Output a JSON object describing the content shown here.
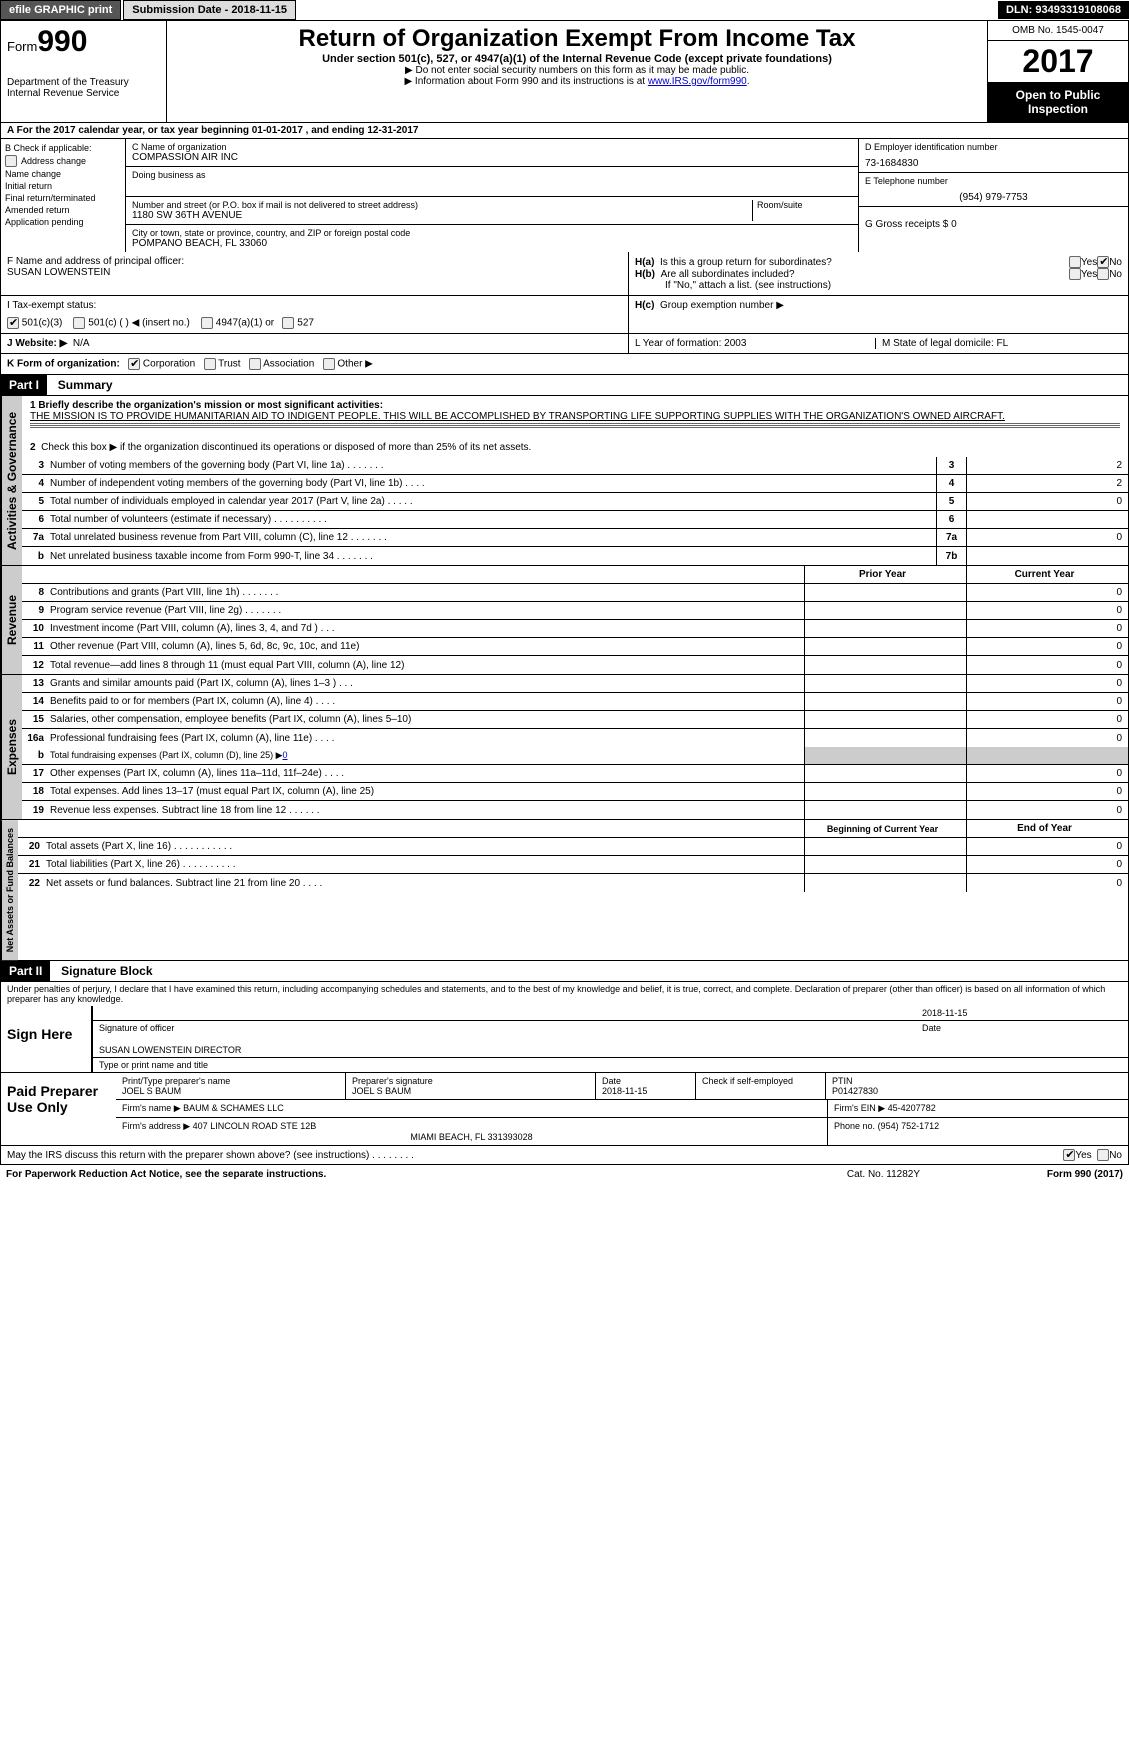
{
  "topbar": {
    "efile": "efile GRAPHIC print",
    "submission_label": "Submission Date - 2018-11-15",
    "dln": "DLN: 93493319108068"
  },
  "header": {
    "form_prefix": "Form",
    "form_num": "990",
    "dept": "Department of the Treasury",
    "irs": "Internal Revenue Service",
    "title": "Return of Organization Exempt From Income Tax",
    "subtitle": "Under section 501(c), 527, or 4947(a)(1) of the Internal Revenue Code (except private foundations)",
    "note1": "▶ Do not enter social security numbers on this form as it may be made public.",
    "note2_pre": "▶ Information about Form 990 and its instructions is at ",
    "note2_link": "www.IRS.gov/form990",
    "omb": "OMB No. 1545-0047",
    "year": "2017",
    "open1": "Open to Public",
    "open2": "Inspection"
  },
  "row_a": "A   For the 2017 calendar year, or tax year beginning 01-01-2017       , and ending 12-31-2017",
  "col_b": {
    "header": "B Check if applicable:",
    "items": [
      "Address change",
      "Name change",
      "Initial return",
      "Final return/terminated",
      "Amended return",
      "Application pending"
    ]
  },
  "box_c": {
    "lbl": "C Name of organization",
    "name": "COMPASSION AIR INC",
    "dba_lbl": "Doing business as",
    "addr_lbl": "Number and street (or P.O. box if mail is not delivered to street address)",
    "room_lbl": "Room/suite",
    "addr": "1180 SW 36TH AVENUE",
    "city_lbl": "City or town, state or province, country, and ZIP or foreign postal code",
    "city": "POMPANO BEACH, FL  33060"
  },
  "box_d": {
    "lbl": "D Employer identification number",
    "val": "73-1684830"
  },
  "box_e": {
    "lbl": "E Telephone number",
    "val": "(954) 979-7753"
  },
  "box_g": "G Gross receipts $ 0",
  "box_f": {
    "lbl": "F  Name and address of principal officer:",
    "val": "SUSAN LOWENSTEIN"
  },
  "box_h": {
    "a": "Is this a group return for subordinates?",
    "b": "Are all subordinates included?",
    "note": "If \"No,\" attach a list. (see instructions)",
    "c_lbl": "Group exemption number ▶"
  },
  "row_i": {
    "lbl": "I    Tax-exempt status:",
    "opts": [
      "501(c)(3)",
      "501(c) (  ) ◀ (insert no.)",
      "4947(a)(1) or",
      "527"
    ]
  },
  "row_j": {
    "lbl": "J   Website: ▶",
    "val": "N/A"
  },
  "row_k": {
    "lbl": "K Form of organization:",
    "opts": [
      "Corporation",
      "Trust",
      "Association",
      "Other ▶"
    ]
  },
  "row_l": "L Year of formation: 2003",
  "row_m": "M State of legal domicile: FL",
  "part1": {
    "hdr": "Part I",
    "title": "Summary"
  },
  "summary": {
    "q1_lbl": "1  Briefly describe the organization's mission or most significant activities:",
    "q1_txt": "THE MISSION IS TO PROVIDE HUMANITARIAN AID TO INDIGENT PEOPLE. THIS WILL BE ACCOMPLISHED BY TRANSPORTING LIFE SUPPORTING SUPPLIES WITH THE ORGANIZATION'S OWNED AIRCRAFT.",
    "q2": "Check this box ▶        if the organization discontinued its operations or disposed of more than 25% of its net assets."
  },
  "gov_lines": [
    {
      "n": "3",
      "t": "Number of voting members of the governing body (Part VI, line 1a)   .     .     .     .     .     .     .",
      "box": "3",
      "v": "2"
    },
    {
      "n": "4",
      "t": "Number of independent voting members of the governing body (Part VI, line 1b)    .     .     .     .",
      "box": "4",
      "v": "2"
    },
    {
      "n": "5",
      "t": "Total number of individuals employed in calendar year 2017 (Part V, line 2a)   .     .     .     .     .",
      "box": "5",
      "v": "0"
    },
    {
      "n": "6",
      "t": "Total number of volunteers (estimate if necessary)   .     .     .     .     .     .     .     .     .     .",
      "box": "6",
      "v": ""
    },
    {
      "n": "7a",
      "t": "Total unrelated business revenue from Part VIII, column (C), line 12   .     .     .     .     .     .     .",
      "box": "7a",
      "v": "0"
    },
    {
      "n": "b",
      "t": "Net unrelated business taxable income from Form 990-T, line 34    .     .     .     .     .     .     .",
      "box": "7b",
      "v": ""
    }
  ],
  "col_hdrs": {
    "prior": "Prior Year",
    "current": "Current Year"
  },
  "rev_lines": [
    {
      "n": "8",
      "t": "Contributions and grants (Part VIII, line 1h)    .     .     .     .     .     .     .",
      "p": "",
      "c": "0"
    },
    {
      "n": "9",
      "t": "Program service revenue (Part VIII, line 2g)    .     .     .     .     .     .     .",
      "p": "",
      "c": "0"
    },
    {
      "n": "10",
      "t": "Investment income (Part VIII, column (A), lines 3, 4, and 7d )    .     .     .",
      "p": "",
      "c": "0"
    },
    {
      "n": "11",
      "t": "Other revenue (Part VIII, column (A), lines 5, 6d, 8c, 9c, 10c, and 11e)",
      "p": "",
      "c": "0"
    },
    {
      "n": "12",
      "t": "Total revenue—add lines 8 through 11 (must equal Part VIII, column (A), line 12)",
      "p": "",
      "c": "0"
    }
  ],
  "exp_lines": [
    {
      "n": "13",
      "t": "Grants and similar amounts paid (Part IX, column (A), lines 1–3 )   .     .     .",
      "p": "",
      "c": "0"
    },
    {
      "n": "14",
      "t": "Benefits paid to or for members (Part IX, column (A), line 4)   .     .     .     .",
      "p": "",
      "c": "0"
    },
    {
      "n": "15",
      "t": "Salaries, other compensation, employee benefits (Part IX, column (A), lines 5–10)",
      "p": "",
      "c": "0"
    },
    {
      "n": "16a",
      "t": "Professional fundraising fees (Part IX, column (A), line 11e)   .     .     .     .",
      "p": "",
      "c": "0"
    }
  ],
  "line16b": {
    "n": "b",
    "t": "Total fundraising expenses (Part IX, column (D), line 25) ▶",
    "v": "0"
  },
  "exp_lines2": [
    {
      "n": "17",
      "t": "Other expenses (Part IX, column (A), lines 11a–11d, 11f–24e)    .     .     .     .",
      "p": "",
      "c": "0"
    },
    {
      "n": "18",
      "t": "Total expenses. Add lines 13–17 (must equal Part IX, column (A), line 25)",
      "p": "",
      "c": "0"
    },
    {
      "n": "19",
      "t": "Revenue less expenses. Subtract line 18 from line 12   .     .     .     .     .     .",
      "p": "",
      "c": "0"
    }
  ],
  "bal_hdrs": {
    "begin": "Beginning of Current Year",
    "end": "End of Year"
  },
  "bal_lines": [
    {
      "n": "20",
      "t": "Total assets (Part X, line 16)   .     .     .     .     .     .     .     .     .     .     .",
      "p": "",
      "c": "0"
    },
    {
      "n": "21",
      "t": "Total liabilities (Part X, line 26)    .     .     .     .     .     .     .     .     .     .",
      "p": "",
      "c": "0"
    },
    {
      "n": "22",
      "t": "Net assets or fund balances. Subtract line 21 from line 20    .     .     .     .",
      "p": "",
      "c": "0"
    }
  ],
  "part2": {
    "hdr": "Part II",
    "title": "Signature Block"
  },
  "penalty": "Under penalties of perjury, I declare that I have examined this return, including accompanying schedules and statements, and to the best of my knowledge and belief, it is true, correct, and complete. Declaration of preparer (other than officer) is based on all information of which preparer has any knowledge.",
  "sign": {
    "here": "Sign Here",
    "date": "2018-11-15",
    "sig_lbl": "Signature of officer",
    "date_lbl": "Date",
    "name": "SUSAN LOWENSTEIN  DIRECTOR",
    "name_lbl": "Type or print name and title"
  },
  "prep": {
    "label": "Paid Preparer Use Only",
    "name_lbl": "Print/Type preparer's name",
    "name": "JOEL S BAUM",
    "sig_lbl": "Preparer's signature",
    "sig": "JOEL S BAUM",
    "date_lbl": "Date",
    "date": "2018-11-15",
    "check_lbl": "Check         if self-employed",
    "ptin_lbl": "PTIN",
    "ptin": "P01427830",
    "firm_name_lbl": "Firm's name     ▶",
    "firm_name": "BAUM & SCHAMES LLC",
    "firm_ein_lbl": "Firm's EIN ▶",
    "firm_ein": "45-4207782",
    "firm_addr_lbl": "Firm's address ▶",
    "firm_addr": "407 LINCOLN ROAD STE 12B",
    "firm_city": "MIAMI BEACH, FL  331393028",
    "phone_lbl": "Phone no.",
    "phone": "(954) 752-1712"
  },
  "discuss": "May the IRS discuss this return with the preparer shown above? (see instructions)   .     .     .     .     .     .     .     .",
  "bottom": {
    "left": "For Paperwork Reduction Act Notice, see the separate instructions.",
    "mid": "Cat. No. 11282Y",
    "right": "Form 990 (2017)"
  },
  "yes": "Yes",
  "no": "No",
  "tabs": {
    "gov": "Activities & Governance",
    "rev": "Revenue",
    "exp": "Expenses",
    "bal": "Net Assets or Fund Balances"
  }
}
